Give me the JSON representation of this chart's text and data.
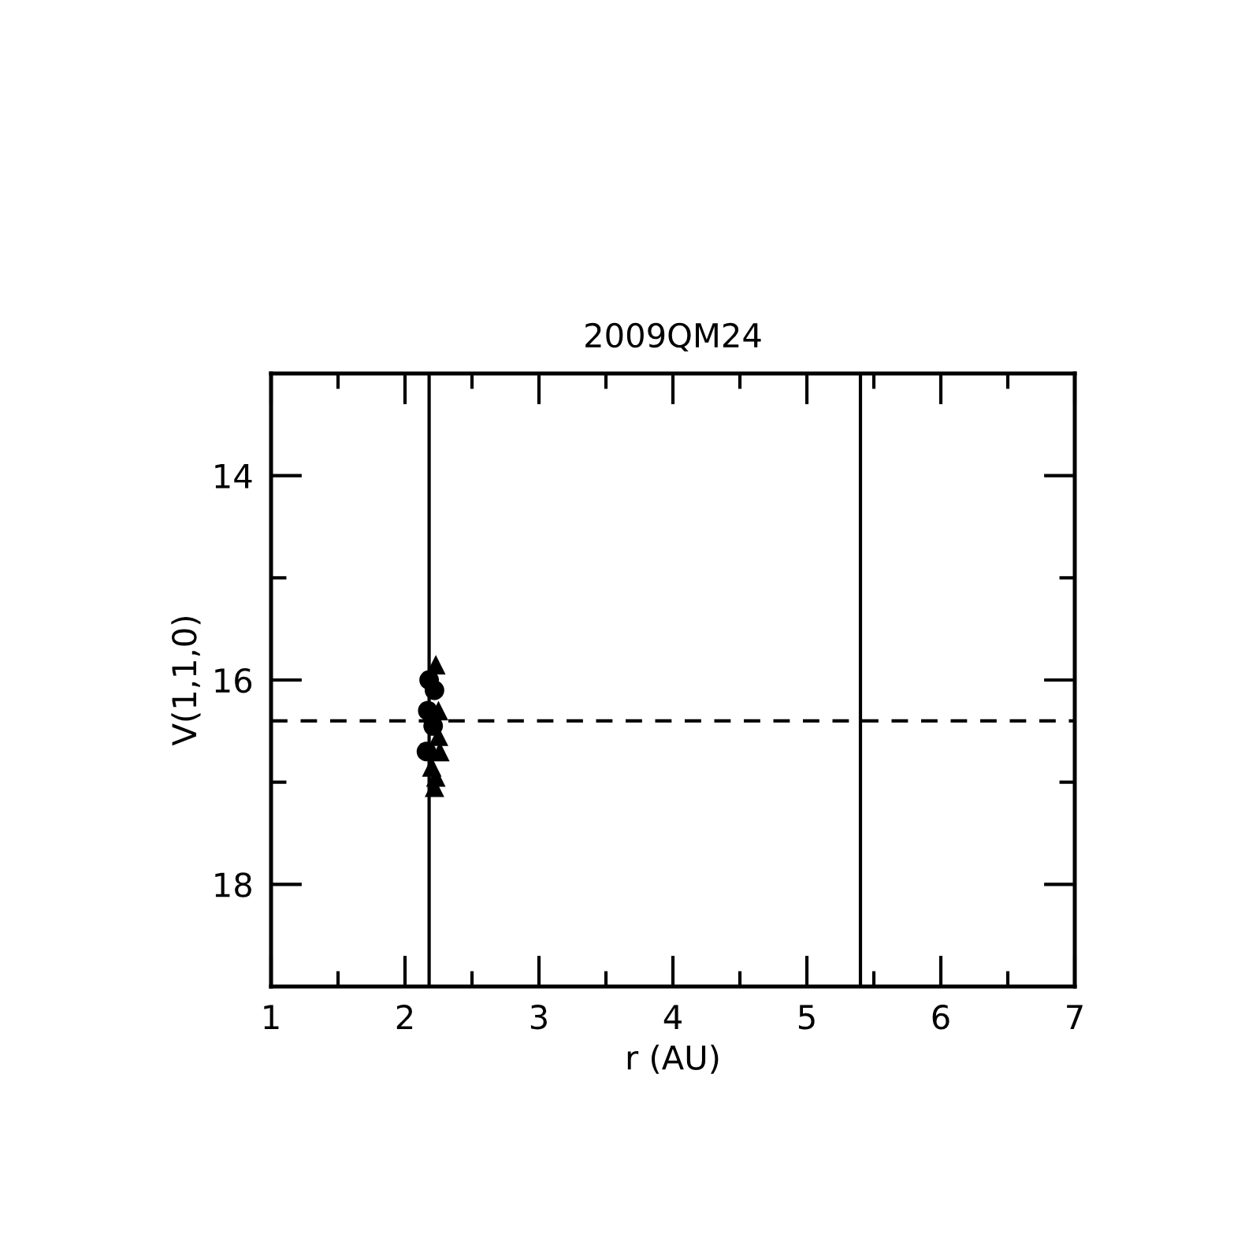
{
  "chart_data": {
    "type": "scatter",
    "title": "2009QM24",
    "xlabel": "r (AU)",
    "ylabel": "V(1,1,0)",
    "series": [
      {
        "color": "#000000",
        "marker": "circle",
        "x": [
          2.18,
          2.22,
          2.17,
          2.21,
          2.16
        ],
        "values": [
          16.0,
          16.1,
          16.3,
          16.45,
          16.7
        ]
      },
      {
        "color": "#000000",
        "marker": "triangle",
        "x": [
          2.23,
          2.25,
          2.25,
          2.26,
          2.2,
          2.23,
          2.22
        ],
        "values": [
          15.85,
          16.3,
          16.55,
          16.7,
          16.85,
          16.95,
          17.05
        ]
      }
    ],
    "xlim": [
      1,
      7
    ],
    "ylim": [
      19,
      13
    ],
    "xticks": [
      1,
      {
        "value": 1.5,
        "label": null
      },
      2,
      {
        "value": 2.5,
        "label": null
      },
      3,
      {
        "value": 3.5,
        "label": null
      },
      4,
      {
        "value": 4.5,
        "label": null
      },
      5,
      {
        "value": 5.5,
        "label": null
      },
      6,
      {
        "value": 6.5,
        "label": null
      },
      7
    ],
    "yticks": [
      14,
      {
        "value": 15,
        "label": null
      },
      16,
      {
        "value": 17,
        "label": null
      },
      18
    ],
    "ref_lines": [
      {
        "axis": "x",
        "value": 2.18,
        "line_style": "solid"
      },
      {
        "axis": "x",
        "value": 5.4,
        "line_style": "solid"
      },
      {
        "axis": "y",
        "value": 16.4,
        "line_style": "dashed"
      }
    ],
    "grid": false,
    "legend": false
  }
}
